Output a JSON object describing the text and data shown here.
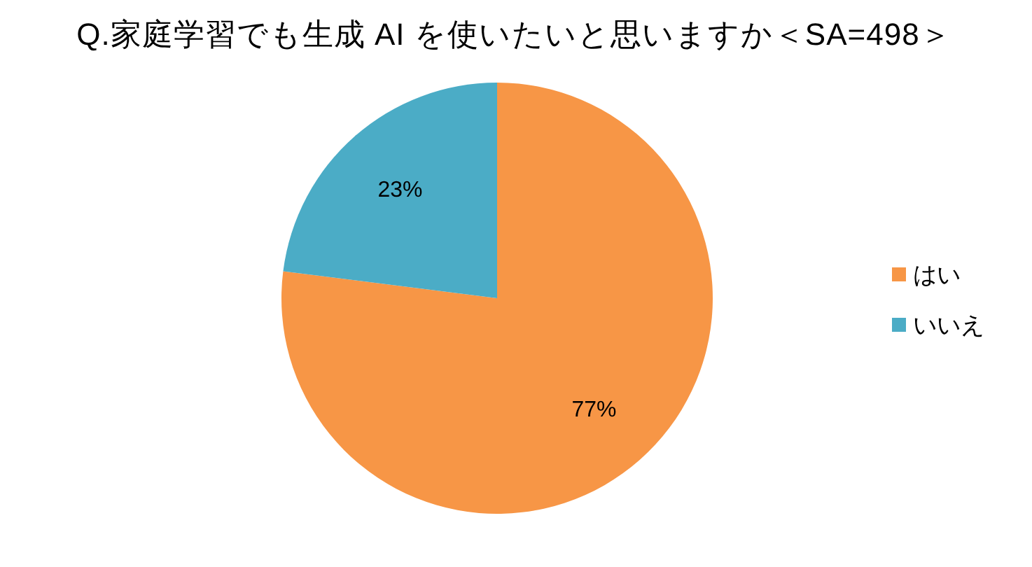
{
  "chart_data": {
    "type": "pie",
    "title": "Q.家庭学習でも生成 AI を使いたいと思いますか＜SA=498＞",
    "categories": [
      "はい",
      "いいえ"
    ],
    "values": [
      77,
      23
    ],
    "colors": [
      "#f79646",
      "#4bacc6"
    ],
    "value_labels": [
      "77%",
      "23%"
    ],
    "legend": "right"
  }
}
